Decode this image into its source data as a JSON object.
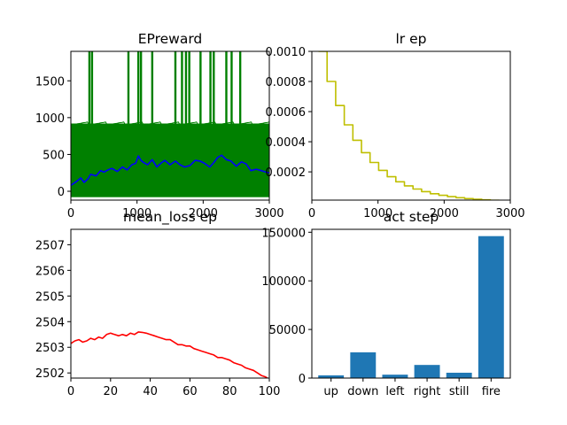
{
  "chart_data": [
    {
      "type": "line",
      "title": "EPreward",
      "xlim": [
        0,
        3000
      ],
      "ylim": [
        -120,
        1900
      ],
      "xticks": [
        0,
        1000,
        2000,
        3000
      ],
      "yticks": [
        0,
        500,
        1000,
        1500
      ],
      "grid": false,
      "series": [
        {
          "color": "#008000",
          "band": {
            "low": -80,
            "high": 920
          },
          "spikes": [
            280,
            320,
            870,
            1020,
            1060,
            1230,
            1580,
            1680,
            1740,
            1790,
            1960,
            2110,
            2160,
            2350,
            2430,
            2560
          ],
          "spike_top": 1900
        },
        {
          "color": "#0000ff",
          "x": [
            0,
            80,
            150,
            200,
            260,
            300,
            380,
            450,
            500,
            560,
            620,
            700,
            780,
            850,
            920,
            980,
            1020,
            1060,
            1100,
            1160,
            1230,
            1300,
            1360,
            1420,
            1500,
            1580,
            1650,
            1720,
            1800,
            1880,
            1950,
            2020,
            2100,
            2160,
            2220,
            2280,
            2350,
            2420,
            2500,
            2580,
            2650,
            2720,
            2800,
            2880,
            2950,
            3000
          ],
          "y": [
            80,
            130,
            180,
            120,
            170,
            230,
            210,
            280,
            260,
            290,
            310,
            270,
            330,
            290,
            360,
            380,
            480,
            420,
            390,
            360,
            430,
            330,
            380,
            420,
            360,
            410,
            360,
            330,
            350,
            420,
            410,
            380,
            330,
            390,
            460,
            490,
            430,
            410,
            340,
            400,
            370,
            280,
            300,
            280,
            260,
            250
          ]
        }
      ]
    },
    {
      "type": "line",
      "title": "lr ep",
      "xlim": [
        0,
        3000
      ],
      "ylim": [
        1.25e-05,
        0.001
      ],
      "xticks": [
        0,
        1000,
        2000,
        3000
      ],
      "yticks": [
        0.0002,
        0.0004,
        0.0006,
        0.0008,
        0.001
      ],
      "ytick_labels": [
        "0.0002",
        "0.0004",
        "0.0006",
        "0.0008",
        "0.0010"
      ],
      "grid": false,
      "series": [
        {
          "color": "#bfbf00",
          "step_width": 130,
          "start": 0.001,
          "factor": 0.8,
          "x_start": 100,
          "x_end": 3000
        }
      ]
    },
    {
      "type": "line",
      "title": "mean_loss ep",
      "xlim": [
        0,
        100
      ],
      "ylim": [
        2501.8,
        2507.6
      ],
      "xticks": [
        0,
        20,
        40,
        60,
        80,
        100
      ],
      "yticks": [
        2502,
        2503,
        2504,
        2505,
        2506,
        2507
      ],
      "grid": false,
      "series": [
        {
          "color": "#ff0000",
          "x": [
            0,
            2,
            4,
            6,
            8,
            10,
            12,
            14,
            16,
            18,
            20,
            22,
            24,
            26,
            28,
            30,
            32,
            34,
            36,
            38,
            40,
            42,
            44,
            46,
            48,
            50,
            52,
            54,
            56,
            58,
            60,
            62,
            64,
            66,
            68,
            70,
            72,
            74,
            76,
            78,
            80,
            82,
            84,
            86,
            88,
            90,
            92,
            94,
            96,
            98,
            100
          ],
          "y": [
            2503.15,
            2503.25,
            2503.3,
            2503.2,
            2503.25,
            2503.35,
            2503.3,
            2503.4,
            2503.35,
            2503.5,
            2503.55,
            2503.5,
            2503.45,
            2503.5,
            2503.45,
            2503.55,
            2503.5,
            2503.6,
            2503.58,
            2503.55,
            2503.5,
            2503.45,
            2503.4,
            2503.35,
            2503.3,
            2503.3,
            2503.2,
            2503.1,
            2503.1,
            2503.05,
            2503.05,
            2502.95,
            2502.9,
            2502.85,
            2502.8,
            2502.75,
            2502.7,
            2502.6,
            2502.6,
            2502.55,
            2502.5,
            2502.4,
            2502.35,
            2502.3,
            2502.2,
            2502.15,
            2502.1,
            2502.0,
            2501.9,
            2501.85,
            2501.75
          ]
        }
      ]
    },
    {
      "type": "bar",
      "title": "act step",
      "categories": [
        "up",
        "down",
        "left",
        "right",
        "still",
        "fire"
      ],
      "values": [
        2800,
        26500,
        3500,
        13500,
        5500,
        146000
      ],
      "ylim": [
        0,
        153000
      ],
      "yticks": [
        0,
        50000,
        100000,
        150000
      ],
      "color": "#1f77b4",
      "grid": false
    }
  ]
}
